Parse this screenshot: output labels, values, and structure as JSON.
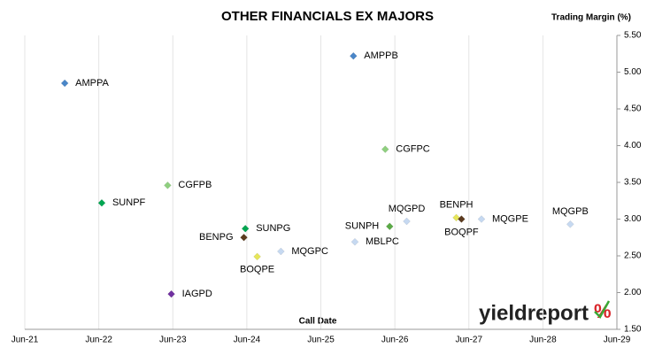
{
  "chart_data": {
    "type": "scatter",
    "title": "OTHER FINANCIALS EX MAJORS",
    "y_label": "Trading Margin (%)",
    "x_label": "Call Date",
    "logo": "yieldreport",
    "logo_symbol": "%",
    "xlim": [
      2021.5,
      2029.5
    ],
    "ylim": [
      1.5,
      5.5
    ],
    "xticks": [
      {
        "value": 2021.5,
        "label": "Jun-21"
      },
      {
        "value": 2022.5,
        "label": "Jun-22"
      },
      {
        "value": 2023.5,
        "label": "Jun-23"
      },
      {
        "value": 2024.5,
        "label": "Jun-24"
      },
      {
        "value": 2025.5,
        "label": "Jun-25"
      },
      {
        "value": 2026.5,
        "label": "Jun-26"
      },
      {
        "value": 2027.5,
        "label": "Jun-27"
      },
      {
        "value": 2028.5,
        "label": "Jun-28"
      },
      {
        "value": 2029.5,
        "label": "Jun-29"
      }
    ],
    "yticks": [
      {
        "value": 1.5,
        "label": "1.50"
      },
      {
        "value": 2.0,
        "label": "2.00"
      },
      {
        "value": 2.5,
        "label": "2.50"
      },
      {
        "value": 3.0,
        "label": "3.00"
      },
      {
        "value": 3.5,
        "label": "3.50"
      },
      {
        "value": 4.0,
        "label": "4.00"
      },
      {
        "value": 4.5,
        "label": "4.50"
      },
      {
        "value": 5.0,
        "label": "5.00"
      },
      {
        "value": 5.5,
        "label": "5.50"
      }
    ],
    "grid": true,
    "series": [
      {
        "name": "AMPPA",
        "color": "#4a86c8",
        "x": [
          2022.04
        ],
        "values": [
          4.85
        ]
      },
      {
        "name": "AMPPB",
        "color": "#4a86c8",
        "x": [
          2025.94
        ],
        "values": [
          5.22
        ]
      },
      {
        "name": "CGFPC",
        "color": "#8fcf7f",
        "x": [
          2026.37
        ],
        "values": [
          3.95
        ]
      },
      {
        "name": "CGFPB",
        "color": "#8fcf7f",
        "x": [
          2023.43
        ],
        "values": [
          3.46
        ]
      },
      {
        "name": "SUNPF",
        "color": "#00a651",
        "x": [
          2022.54
        ],
        "values": [
          3.22
        ]
      },
      {
        "name": "MQGPD",
        "color": "#c6d9f1",
        "x": [
          2026.66
        ],
        "values": [
          2.97
        ]
      },
      {
        "name": "BENPH",
        "color": "#e6e65a",
        "x": [
          2027.33
        ],
        "values": [
          3.02
        ]
      },
      {
        "name": "BOQPF",
        "color": "#5b3a1e",
        "x": [
          2027.4
        ],
        "values": [
          3.0
        ]
      },
      {
        "name": "MQGPE",
        "color": "#c6d9f1",
        "x": [
          2027.67
        ],
        "values": [
          3.0
        ]
      },
      {
        "name": "MQGPB",
        "color": "#c6d9f1",
        "x": [
          2028.87
        ],
        "values": [
          2.93
        ]
      },
      {
        "name": "SUNPH",
        "color": "#5aaa46",
        "x": [
          2026.43
        ],
        "values": [
          2.9
        ]
      },
      {
        "name": "SUNPG",
        "color": "#00a651",
        "x": [
          2024.48
        ],
        "values": [
          2.87
        ]
      },
      {
        "name": "BENPG",
        "color": "#5b3a1e",
        "x": [
          2024.46
        ],
        "values": [
          2.75
        ]
      },
      {
        "name": "MBLPC",
        "color": "#c6d9f1",
        "x": [
          2025.96
        ],
        "values": [
          2.69
        ]
      },
      {
        "name": "MQGPC",
        "color": "#c6d9f1",
        "x": [
          2024.96
        ],
        "values": [
          2.56
        ]
      },
      {
        "name": "BOQPE",
        "color": "#e6e65a",
        "x": [
          2024.64
        ],
        "values": [
          2.49
        ]
      },
      {
        "name": "IAGPD",
        "color": "#7030a0",
        "x": [
          2023.48
        ],
        "values": [
          1.98
        ]
      }
    ]
  }
}
